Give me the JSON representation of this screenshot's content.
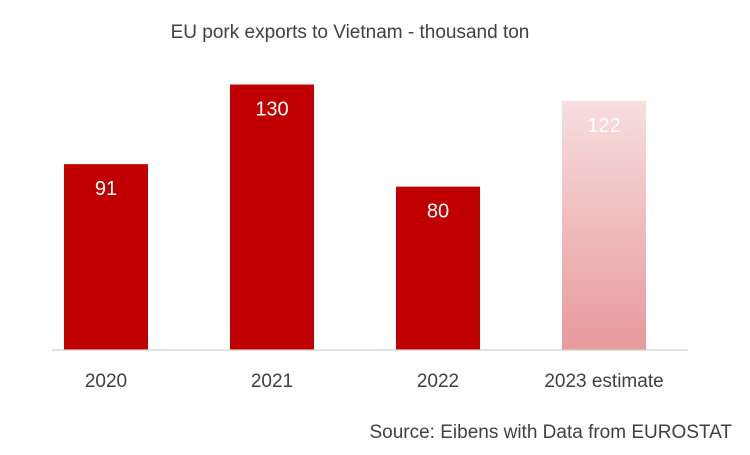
{
  "chart_data": {
    "type": "bar",
    "title": "EU pork exports to Vietnam - thousand ton",
    "categories": [
      "2020",
      "2021",
      "2022",
      "2023 estimate"
    ],
    "values": [
      91,
      130,
      80,
      122
    ],
    "data_labels": [
      "91",
      "130",
      "80",
      "122"
    ],
    "estimated": [
      false,
      false,
      false,
      true
    ],
    "ylim": [
      0,
      142
    ],
    "xlabel": "",
    "ylabel": "",
    "grid": false,
    "legend": "none",
    "source": "Source: Eibens with Data from EUROSTAT"
  },
  "colors": {
    "bar": "#c00000",
    "bar_estimate_top": "#f7dede",
    "bar_estimate_bottom": "#e8999b",
    "label_on_bar": "#ffffff",
    "text": "#404040",
    "axis": "#d0d0d0"
  }
}
